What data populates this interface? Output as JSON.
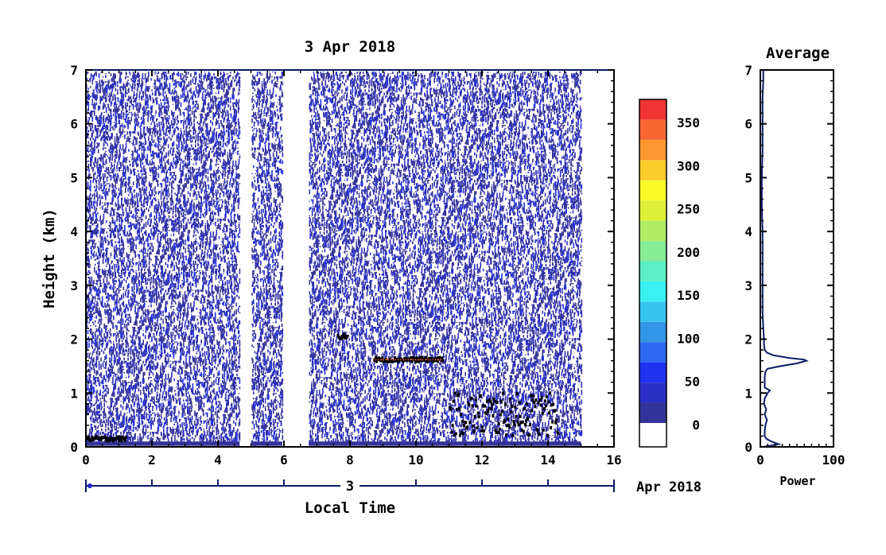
{
  "main_chart": {
    "type": "heatmap",
    "title": "3 Apr 2018",
    "xlabel": "Local Time",
    "ylabel": "Height (km)",
    "xlim": [
      0,
      16
    ],
    "ylim": [
      0,
      7
    ],
    "x_ticks": [
      "0",
      "2",
      "4",
      "6",
      "8",
      "10",
      "12",
      "14",
      "16"
    ],
    "y_ticks": [
      "0",
      "1",
      "2",
      "3",
      "4",
      "5",
      "6",
      "7"
    ],
    "date_axis": {
      "day_label": "3",
      "month_year": "Apr 2018"
    },
    "data_gaps_hours": [
      [
        4.65,
        5.0
      ],
      [
        5.95,
        6.75
      ]
    ],
    "data_end_hour": 15.0,
    "features": [
      {
        "name": "cloud layer",
        "x_start": 8.7,
        "x_end": 10.8,
        "height_km": 1.62,
        "max_value": 380
      },
      {
        "name": "cloud patch",
        "x_start": 7.6,
        "x_end": 7.9,
        "height_km": 2.05
      },
      {
        "name": "low echoes",
        "x_start": 0.0,
        "x_end": 1.2,
        "height_km": 0.15
      },
      {
        "name": "scattered echoes",
        "x_start": 11.0,
        "x_end": 14.3,
        "height_km": 0.6
      }
    ]
  },
  "colorbar": {
    "ticks": [
      "0",
      "50",
      "100",
      "150",
      "200",
      "250",
      "300",
      "350"
    ],
    "vmin": 0,
    "vmax": 375,
    "colors": [
      "#343399",
      "#2a2fc6",
      "#1f32ee",
      "#2c68f0",
      "#3296e6",
      "#36c3ee",
      "#3af0f0",
      "#5cf0c4",
      "#86ec96",
      "#b0ec66",
      "#def03a",
      "#fafa2a",
      "#fccc2c",
      "#fc9830",
      "#f86634",
      "#f03434"
    ]
  },
  "profile_chart": {
    "type": "line",
    "title": "Average",
    "xlabel": "Power",
    "x_ticks": [
      "0",
      "100"
    ],
    "y_ticks": [
      "0",
      "1",
      "2",
      "3",
      "4",
      "5",
      "6",
      "7"
    ],
    "xlim": [
      0,
      100
    ],
    "ylim": [
      0,
      7
    ],
    "series": [
      {
        "height_km": [
          0.0,
          0.05,
          0.1,
          0.15,
          0.2,
          0.3,
          0.4,
          0.5,
          0.6,
          0.7,
          0.8,
          0.9,
          1.0,
          1.05,
          1.1,
          1.2,
          1.3,
          1.4,
          1.45,
          1.5,
          1.55,
          1.6,
          1.62,
          1.65,
          1.7,
          1.75,
          1.8,
          1.9,
          2.0,
          2.2,
          2.5,
          3.0,
          3.5,
          4.0,
          4.5,
          5.0,
          5.5,
          6.0,
          6.5,
          6.8,
          7.0
        ],
        "power": [
          4,
          25,
          15,
          8,
          6,
          6,
          7,
          9,
          6,
          8,
          5,
          6,
          10,
          13,
          6,
          6,
          6,
          7,
          10,
          28,
          50,
          63,
          60,
          40,
          18,
          9,
          6,
          5,
          5,
          4,
          3,
          3,
          3,
          3,
          2,
          2,
          3,
          3,
          3,
          4,
          4
        ]
      }
    ]
  }
}
